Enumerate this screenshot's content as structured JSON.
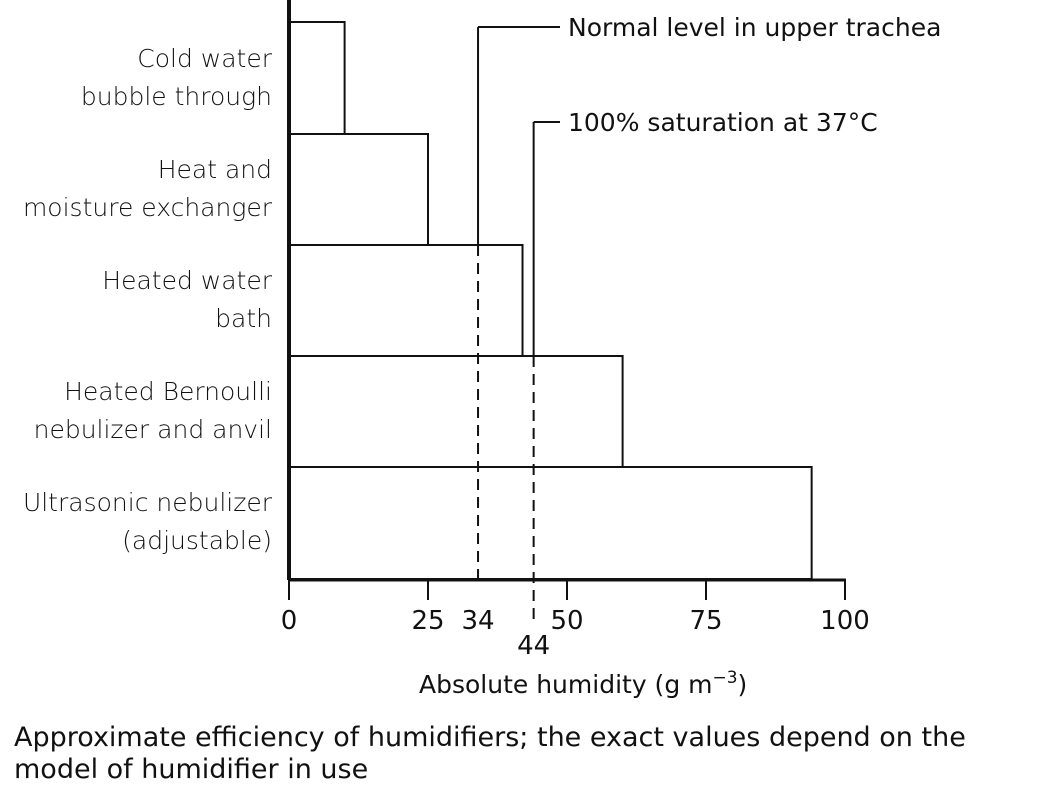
{
  "chart_data": {
    "type": "bar",
    "orientation": "horizontal",
    "categories": [
      [
        "Cold water",
        "bubble through"
      ],
      [
        "Heat and",
        "moisture exchanger"
      ],
      [
        "Heated water",
        "bath"
      ],
      [
        "Heated Bernoulli",
        "nebulizer and anvil"
      ],
      [
        "Ultrasonic nebulizer",
        "(adjustable)"
      ]
    ],
    "values": [
      10,
      25,
      42,
      60,
      94
    ],
    "xlabel": "Absolute humidity (g m",
    "xlabel_sup": "−3",
    "xlabel_tail": ")",
    "xlim": [
      0,
      100
    ],
    "xticks": [
      0,
      25,
      34,
      44,
      50,
      75,
      100
    ],
    "xtick_labels": [
      "0",
      "25",
      "34",
      "44",
      "50",
      "75",
      "100"
    ],
    "reference_lines": [
      {
        "value": 34,
        "label": "Normal level in upper trachea"
      },
      {
        "value": 44,
        "label": "100% saturation at 37°C"
      }
    ],
    "grid": false,
    "caption": "Approximate efficiency of humidifiers; the exact values depend on the model of humidifier in use"
  }
}
